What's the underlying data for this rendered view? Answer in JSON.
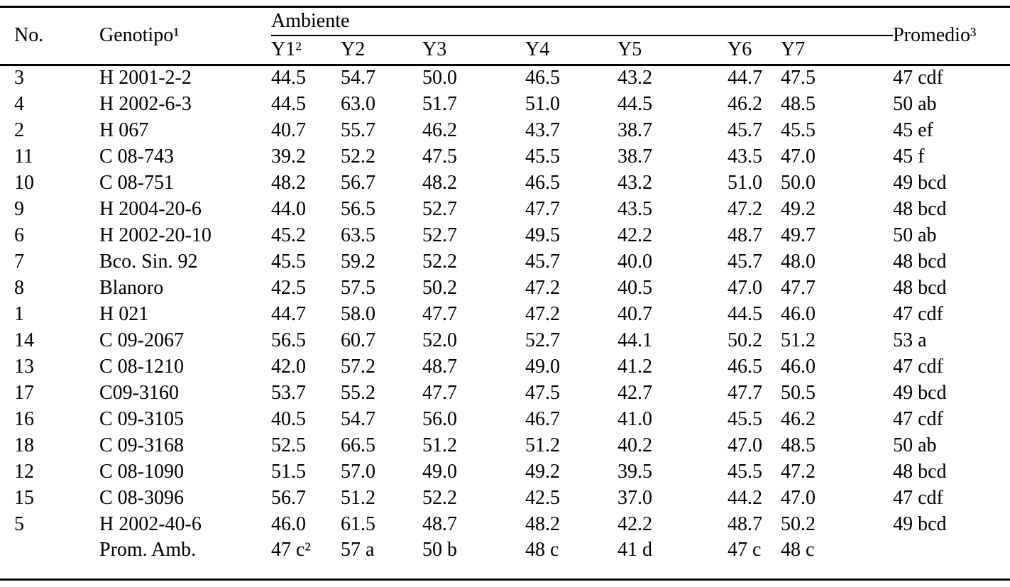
{
  "table": {
    "header": {
      "col_no": "No.",
      "col_genotipo": "Genotipo¹",
      "col_ambiente": "Ambiente",
      "col_promedio": "Promedio³",
      "env_cols": [
        "Y1²",
        "Y2",
        "Y3",
        "Y4",
        "Y5",
        "Y6",
        "Y7"
      ]
    },
    "rows": [
      {
        "no": "3",
        "genotipo": "H 2001-2-2",
        "values": [
          "44.5",
          "54.7",
          "50.0",
          "46.5",
          "43.2",
          "44.7",
          "47.5"
        ],
        "promedio": "47 cdf"
      },
      {
        "no": "4",
        "genotipo": "H 2002-6-3",
        "values": [
          "44.5",
          "63.0",
          "51.7",
          "51.0",
          "44.5",
          "46.2",
          "48.5"
        ],
        "promedio": "50 ab"
      },
      {
        "no": "2",
        "genotipo": "H 067",
        "values": [
          "40.7",
          "55.7",
          "46.2",
          "43.7",
          "38.7",
          "45.7",
          "45.5"
        ],
        "promedio": "45 ef"
      },
      {
        "no": "11",
        "genotipo": "C 08-743",
        "values": [
          "39.2",
          "52.2",
          "47.5",
          "45.5",
          "38.7",
          "43.5",
          "47.0"
        ],
        "promedio": "45 f"
      },
      {
        "no": "10",
        "genotipo": "C 08-751",
        "values": [
          "48.2",
          "56.7",
          "48.2",
          "46.5",
          "43.2",
          "51.0",
          "50.0"
        ],
        "promedio": "49 bcd"
      },
      {
        "no": "9",
        "genotipo": "H 2004-20-6",
        "values": [
          "44.0",
          "56.5",
          "52.7",
          "47.7",
          "43.5",
          "47.2",
          "49.2"
        ],
        "promedio": "48 bcd"
      },
      {
        "no": "6",
        "genotipo": "H 2002-20-10",
        "values": [
          "45.2",
          "63.5",
          "52.7",
          "49.5",
          "42.2",
          "48.7",
          "49.7"
        ],
        "promedio": "50 ab"
      },
      {
        "no": "7",
        "genotipo": "Bco. Sin. 92",
        "values": [
          "45.5",
          "59.2",
          "52.2",
          "45.7",
          "40.0",
          "45.7",
          "48.0"
        ],
        "promedio": "48 bcd"
      },
      {
        "no": "8",
        "genotipo": "Blanoro",
        "values": [
          "42.5",
          "57.5",
          "50.2",
          "47.2",
          "40.5",
          "47.0",
          "47.7"
        ],
        "promedio": "48 bcd"
      },
      {
        "no": "1",
        "genotipo": "H 021",
        "values": [
          "44.7",
          "58.0",
          "47.7",
          "47.2",
          "40.7",
          "44.5",
          "46.0"
        ],
        "promedio": "47 cdf"
      },
      {
        "no": "14",
        "genotipo": "C 09-2067",
        "values": [
          "56.5",
          "60.7",
          "52.0",
          "52.7",
          "44.1",
          "50.2",
          "51.2"
        ],
        "promedio": "53 a"
      },
      {
        "no": "13",
        "genotipo": "C 08-1210",
        "values": [
          "42.0",
          "57.2",
          "48.7",
          "49.0",
          "41.2",
          "46.5",
          "46.0"
        ],
        "promedio": "47 cdf"
      },
      {
        "no": "17",
        "genotipo": "C09-3160",
        "values": [
          "53.7",
          "55.2",
          "47.7",
          "47.5",
          "42.7",
          "47.7",
          "50.5"
        ],
        "promedio": "49 bcd"
      },
      {
        "no": "16",
        "genotipo": "C 09-3105",
        "values": [
          "40.5",
          "54.7",
          "56.0",
          "46.7",
          "41.0",
          "45.5",
          "46.2"
        ],
        "promedio": "47 cdf"
      },
      {
        "no": "18",
        "genotipo": "C 09-3168",
        "values": [
          "52.5",
          "66.5",
          "51.2",
          "51.2",
          "40.2",
          "47.0",
          "48.5"
        ],
        "promedio": "50 ab"
      },
      {
        "no": "12",
        "genotipo": "C 08-1090",
        "values": [
          "51.5",
          "57.0",
          "49.0",
          "49.2",
          "39.5",
          "45.5",
          "47.2"
        ],
        "promedio": "48 bcd"
      },
      {
        "no": "15",
        "genotipo": "C 08-3096",
        "values": [
          "56.7",
          "51.2",
          "52.2",
          "42.5",
          "37.0",
          "44.2",
          "47.0"
        ],
        "promedio": "47 cdf"
      },
      {
        "no": "5",
        "genotipo": "H 2002-40-6",
        "values": [
          "46.0",
          "61.5",
          "48.7",
          "48.2",
          "42.2",
          "48.7",
          "50.2"
        ],
        "promedio": "49 bcd"
      }
    ],
    "footer": {
      "no": "",
      "genotipo": "Prom. Amb.",
      "values": [
        "47 c²",
        "57 a",
        "50 b",
        "48 c",
        "41 d",
        "47 c",
        "48 c"
      ],
      "promedio": ""
    }
  }
}
